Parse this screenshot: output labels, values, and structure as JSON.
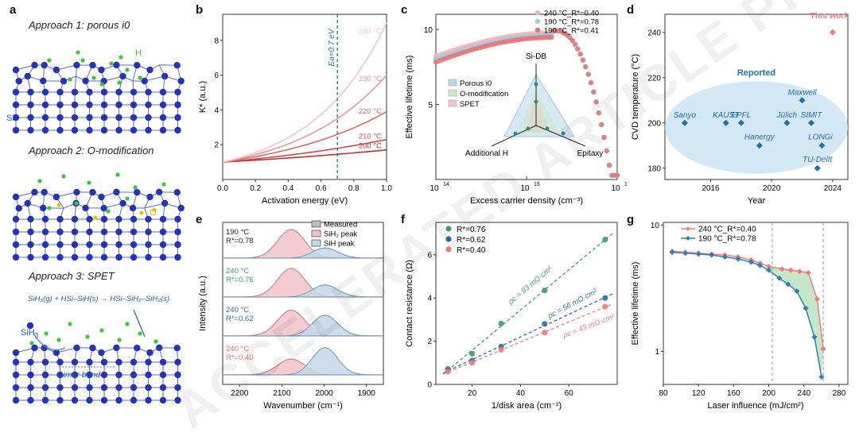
{
  "panels": {
    "a": "a",
    "b": "b",
    "c": "c",
    "d": "d",
    "e": "e",
    "f": "f",
    "g": "g"
  },
  "panel_a": {
    "approach1": "Approach 1: porous i0",
    "approach2": "Approach 2: O-modification",
    "approach3": "Approach 3: SPET",
    "label_h": "H",
    "label_si": "Si",
    "label_o": "O",
    "label_sih3": "SiH",
    "label_sih3_sub": "3",
    "label_dimer": "Dimer bond",
    "reaction": "SiH₃(g) + HSi–SiH(s) → HSi–SiH₂–SiH₂(s)"
  },
  "watermark": "ACCELERATED ARTICLE PREVIEW",
  "chart_data": [
    {
      "id": "b",
      "type": "line",
      "xlabel": "Activation energy (eV)",
      "ylabel": "K* (a.u.)",
      "xlim": [
        0,
        1.0
      ],
      "ylim": [
        0,
        9.5
      ],
      "xticks": [
        "0.0",
        "0.2",
        "0.4",
        "0.6",
        "0.8",
        "1.0"
      ],
      "yticks": [
        "2",
        "4",
        "6",
        "8"
      ],
      "annotation": "Ea=0.7 eV",
      "annotation_x": 0.7,
      "series": [
        {
          "name": "200 °C",
          "end": 1.7,
          "color": "#c0303a"
        },
        {
          "name": "210 °C",
          "end": 2.3,
          "color": "#d0494f"
        },
        {
          "name": "220 °C",
          "end": 3.9,
          "color": "#dc6b6b"
        },
        {
          "name": "230 °C",
          "end": 6.0,
          "color": "#e89898"
        },
        {
          "name": "240 °C",
          "end": 9.0,
          "color": "#f2c6c4"
        }
      ]
    },
    {
      "id": "c",
      "type": "scatter",
      "xlabel": "Excess carrier density (cm⁻³)",
      "ylabel": "Effective lifetime (ms)",
      "xticks": [
        "10",
        "10",
        "10"
      ],
      "xtick_exp": [
        "14",
        "15",
        "16"
      ],
      "yticks": [
        "5",
        "10"
      ],
      "legend": [
        "240 °C_R*=0.40",
        "190 °C_R*=0.78",
        "190 °C_R*=0.41"
      ],
      "legend_colors": [
        "#f4b5b5",
        "#a8c8e0",
        "#e07878"
      ],
      "inset": {
        "axes": [
          "Si-DB",
          "Additional H",
          "Epitaxy"
        ],
        "legend": [
          "Porous i0",
          "O-modification",
          "SPET"
        ],
        "legend_colors": [
          "#bcd6ea",
          "#cfe8c8",
          "#f3c3c6"
        ]
      }
    },
    {
      "id": "d",
      "type": "scatter",
      "xlabel": "Year",
      "ylabel": "CVD temperature (°C)",
      "xticks": [
        "2016",
        "2020",
        "2024"
      ],
      "yticks": [
        "180",
        "200",
        "220",
        "240"
      ],
      "xlim": [
        2013,
        2025
      ],
      "ylim": [
        175,
        248
      ],
      "reported_label": "Reported",
      "this_work_label": "This work",
      "this_work": {
        "x": 2024,
        "y": 240
      },
      "points": [
        {
          "name": "Sanyo",
          "x": 2014.3,
          "y": 200
        },
        {
          "name": "KAUST",
          "x": 2017,
          "y": 200
        },
        {
          "name": "EPFL",
          "x": 2018,
          "y": 200
        },
        {
          "name": "Hanergy",
          "x": 2019.2,
          "y": 190
        },
        {
          "name": "Jülich",
          "x": 2021,
          "y": 200
        },
        {
          "name": "Maxwell",
          "x": 2022,
          "y": 210
        },
        {
          "name": "SIMIT",
          "x": 2022.6,
          "y": 200
        },
        {
          "name": "LONGi",
          "x": 2023.3,
          "y": 190
        },
        {
          "name": "TU-Delft",
          "x": 2023,
          "y": 180
        }
      ]
    },
    {
      "id": "e",
      "type": "area",
      "xlabel": "Wavenumber (cm⁻¹)",
      "ylabel": "Intensity (a.u.)",
      "xticks": [
        "2200",
        "2100",
        "2000",
        "1900"
      ],
      "legend": [
        "Measured",
        "SiH₂ peak",
        "SiH peak"
      ],
      "traces": [
        {
          "label1": "190 °C",
          "label2": "R*=0.78",
          "color": "#222222",
          "sih2": 1.0,
          "sih": 0.35
        },
        {
          "label1": "240 °C",
          "label2": "R*=0.76",
          "color": "#3a9d6b",
          "sih2": 1.0,
          "sih": 0.42
        },
        {
          "label1": "240 °C",
          "label2": "R*=0.62",
          "color": "#2f6fa3",
          "sih2": 0.9,
          "sih": 0.72
        },
        {
          "label1": "240 °C",
          "label2": "R*=0.40",
          "color": "#e87070",
          "sih2": 0.55,
          "sih": 0.95
        }
      ]
    },
    {
      "id": "f",
      "type": "scatter",
      "xlabel": "1/disk area (cm⁻²)",
      "ylabel": "Contact resistance (Ω)",
      "xlim": [
        5,
        80
      ],
      "ylim": [
        0,
        7.5
      ],
      "xticks": [
        "20",
        "40",
        "60"
      ],
      "yticks": [
        "0",
        "2",
        "4",
        "6"
      ],
      "legend": [
        "R*=0.76",
        "R*=0.62",
        "R*=0.40"
      ],
      "series": [
        {
          "name": "R*=0.76",
          "color": "#3a9d6b",
          "x": [
            10,
            20,
            32,
            50,
            75
          ],
          "y": [
            0.72,
            1.42,
            2.82,
            4.35,
            6.7
          ],
          "rho": "ρc = 93 mΩ·cm²"
        },
        {
          "name": "R*=0.62",
          "color": "#2f6fa3",
          "x": [
            10,
            20,
            32,
            50,
            75
          ],
          "y": [
            0.66,
            1.1,
            1.75,
            2.8,
            4.0
          ],
          "rho": "ρc = 56 mΩ·cm²"
        },
        {
          "name": "R*=0.40",
          "color": "#f07a7a",
          "x": [
            10,
            20,
            32,
            50,
            75
          ],
          "y": [
            0.6,
            1.0,
            1.6,
            2.4,
            3.6
          ],
          "rho": "ρc = 43 mΩ·cm²"
        }
      ]
    },
    {
      "id": "g",
      "type": "line",
      "xlabel": "Laser influence (mJ/cm²)",
      "ylabel": "Effective lifetime (ms)",
      "xlim": [
        80,
        290
      ],
      "xticks": [
        "80",
        "120",
        "160",
        "200",
        "240",
        "280"
      ],
      "yticks": [
        "1",
        "10"
      ],
      "legend": [
        "240 °C_R*=0.40",
        "190 °C_R*=0.78"
      ],
      "series": [
        {
          "name": "240 °C_R*=0.40",
          "color": "#f07a7a",
          "x": [
            90,
            105,
            120,
            135,
            150,
            165,
            180,
            190,
            200,
            215,
            225,
            235,
            245,
            255,
            262
          ],
          "y": [
            6.2,
            6.1,
            6.0,
            5.9,
            5.8,
            5.6,
            5.3,
            5.0,
            4.7,
            4.5,
            4.4,
            4.3,
            4.2,
            2.6,
            1.05
          ]
        },
        {
          "name": "190 °C_R*=0.78",
          "color": "#2f7fb5",
          "x": [
            90,
            105,
            120,
            135,
            150,
            165,
            180,
            190,
            200,
            212,
            222,
            232,
            242,
            252,
            260
          ],
          "y": [
            6.1,
            6.0,
            5.9,
            5.8,
            5.6,
            5.4,
            5.1,
            4.8,
            4.4,
            3.8,
            3.4,
            3.0,
            2.2,
            1.3,
            0.63
          ]
        }
      ],
      "vlines": [
        204,
        262
      ]
    }
  ]
}
